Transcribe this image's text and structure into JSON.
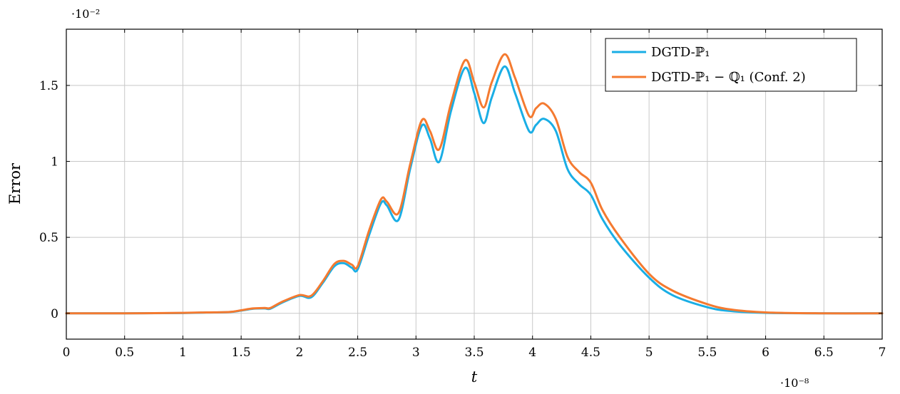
{
  "chart_data": {
    "type": "line",
    "xlabel": "t",
    "ylabel": "Error",
    "x_exponent": "·10⁻⁸",
    "y_exponent": "·10⁻²",
    "xlim": [
      0,
      7
    ],
    "ylim": [
      -0.17,
      1.87
    ],
    "x_ticks": [
      0,
      0.5,
      1,
      1.5,
      2,
      2.5,
      3,
      3.5,
      4,
      4.5,
      5,
      5.5,
      6,
      6.5,
      7
    ],
    "x_tick_labels": [
      "0",
      "0.5",
      "1",
      "1.5",
      "2",
      "2.5",
      "3",
      "3.5",
      "4",
      "4.5",
      "5",
      "5.5",
      "6",
      "6.5",
      "7"
    ],
    "y_ticks": [
      0,
      0.5,
      1,
      1.5
    ],
    "y_tick_labels": [
      "0",
      "0.5",
      "1",
      "1.5"
    ],
    "grid": true,
    "legend_position": "top-right",
    "series": [
      {
        "name": "DGTD-ℙ₁",
        "color": "#1aaee5",
        "x": [
          0,
          0.5,
          1.0,
          1.2,
          1.4,
          1.5,
          1.6,
          1.7,
          1.75,
          1.85,
          2.0,
          2.1,
          2.2,
          2.3,
          2.38,
          2.45,
          2.5,
          2.6,
          2.7,
          2.75,
          2.85,
          2.95,
          3.05,
          3.12,
          3.2,
          3.3,
          3.42,
          3.5,
          3.58,
          3.65,
          3.76,
          3.85,
          3.97,
          4.03,
          4.1,
          4.2,
          4.3,
          4.4,
          4.5,
          4.6,
          4.75,
          5.0,
          5.2,
          5.5,
          5.7,
          6.0,
          6.5,
          7.0
        ],
        "y": [
          0,
          0,
          0.002,
          0.005,
          0.008,
          0.018,
          0.03,
          0.032,
          0.03,
          0.07,
          0.115,
          0.105,
          0.2,
          0.31,
          0.33,
          0.3,
          0.29,
          0.52,
          0.725,
          0.71,
          0.615,
          0.95,
          1.235,
          1.15,
          0.998,
          1.33,
          1.615,
          1.45,
          1.252,
          1.42,
          1.625,
          1.45,
          1.2,
          1.24,
          1.28,
          1.2,
          0.95,
          0.85,
          0.78,
          0.62,
          0.45,
          0.235,
          0.12,
          0.04,
          0.015,
          0.003,
          0,
          0
        ]
      },
      {
        "name": "DGTD-ℙ₁ − ℚ₁ (Conf. 2)",
        "color": "#f47a30",
        "x": [
          0,
          0.5,
          1.0,
          1.2,
          1.4,
          1.5,
          1.6,
          1.7,
          1.75,
          1.85,
          2.0,
          2.1,
          2.2,
          2.3,
          2.38,
          2.45,
          2.5,
          2.6,
          2.7,
          2.75,
          2.85,
          2.95,
          3.05,
          3.12,
          3.2,
          3.3,
          3.42,
          3.5,
          3.58,
          3.65,
          3.76,
          3.85,
          3.97,
          4.03,
          4.1,
          4.2,
          4.3,
          4.4,
          4.5,
          4.6,
          4.75,
          5.0,
          5.2,
          5.5,
          5.7,
          6.0,
          6.5,
          7.0
        ],
        "y": [
          0,
          0,
          0.003,
          0.006,
          0.009,
          0.02,
          0.032,
          0.035,
          0.035,
          0.075,
          0.12,
          0.115,
          0.21,
          0.325,
          0.345,
          0.32,
          0.31,
          0.55,
          0.75,
          0.735,
          0.66,
          0.98,
          1.27,
          1.2,
          1.08,
          1.38,
          1.665,
          1.52,
          1.355,
          1.52,
          1.705,
          1.55,
          1.3,
          1.35,
          1.38,
          1.28,
          1.03,
          0.93,
          0.86,
          0.68,
          0.5,
          0.26,
          0.15,
          0.06,
          0.025,
          0.006,
          0,
          0
        ]
      }
    ]
  }
}
